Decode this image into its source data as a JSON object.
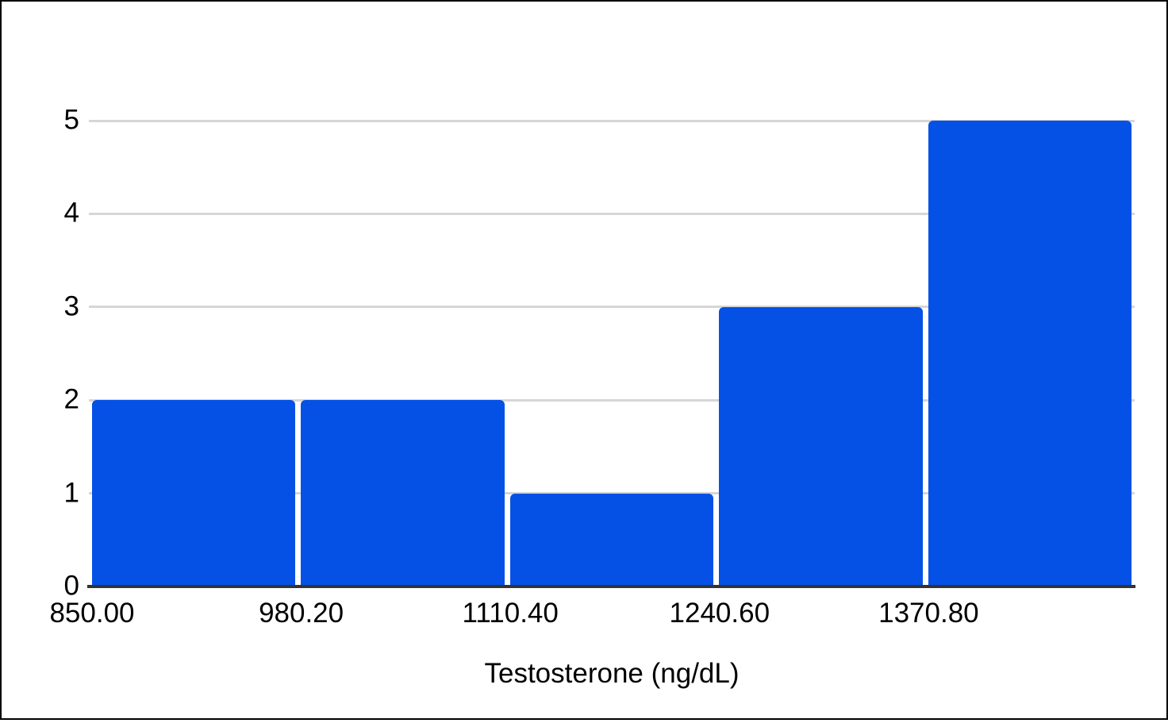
{
  "chart_data": {
    "type": "bar",
    "subtype": "histogram",
    "title": "",
    "xlabel": "Testosterone (ng/dL)",
    "ylabel": "",
    "x_tick_labels": [
      "850.00",
      "980.20",
      "1110.40",
      "1240.60",
      "1370.80"
    ],
    "values": [
      2,
      2,
      1,
      3,
      5
    ],
    "y_ticks": [
      0,
      1,
      2,
      3,
      4,
      5
    ],
    "ylim": [
      0,
      5
    ],
    "grid": true,
    "legend": "none",
    "colors": {
      "bar": "#0551e6",
      "gridline": "#d6d6d6",
      "axis_line": "#333333",
      "text": "#000000",
      "background": "#ffffff",
      "frame_border": "#000000"
    }
  }
}
